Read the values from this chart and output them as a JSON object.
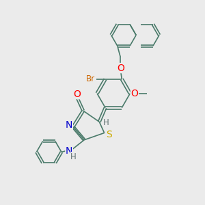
{
  "bg_color": "#ebebeb",
  "bond_color": "#4a7a6a",
  "bond_width": 1.2,
  "atom_colors": {
    "O": "#ff0000",
    "N": "#0000cc",
    "S": "#ccaa00",
    "Br": "#cc6600",
    "H": "#607070",
    "C": "#4a7a6a"
  },
  "font_size": 8.5,
  "title": ""
}
